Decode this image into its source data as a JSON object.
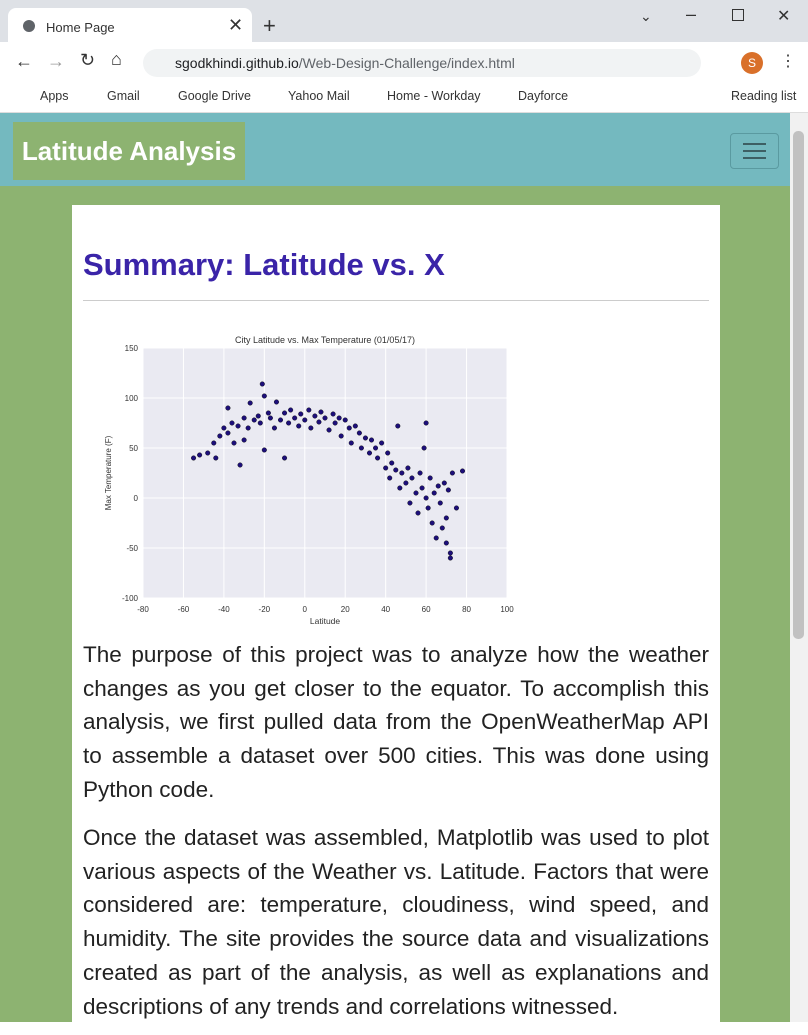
{
  "browser": {
    "tab_title": "Home Page",
    "url_domain": "sgodkhindi.github.io",
    "url_path": "/Web-Design-Challenge/index.html",
    "profile_initial": "S",
    "bookmarks": [
      "Apps",
      "Gmail",
      "Google Drive",
      "Yahoo Mail",
      "Home - Workday",
      "Dayforce"
    ],
    "reading_list": "Reading list"
  },
  "navbar": {
    "brand": "Latitude Analysis"
  },
  "content": {
    "heading": "Summary: Latitude vs. X",
    "paragraphs": [
      "The purpose of this project was to analyze how the weather changes as you get closer to the equator. To accomplish this analysis, we first pulled data from the OpenWeatherMap API to assemble a dataset over 500 cities. This was done using Python code.",
      "Once the dataset was assembled, Matplotlib was used to plot various aspects of the Weather vs. Latitude. Factors that were considered are: temperature, cloudiness, wind speed, and humidity. The site provides the source data and visualizations created as part of the analysis, as well as explanations and descriptions of any trends and correlations witnessed."
    ]
  },
  "chart_data": {
    "type": "scatter",
    "title": "City Latitude vs. Max Temperature (01/05/17)",
    "x_label": "Latitude",
    "y_label": "Max Temperature (F)",
    "xlim": [
      -80,
      100
    ],
    "ylim": [
      -100,
      150
    ],
    "xticks": [
      -80,
      -60,
      -40,
      -20,
      0,
      20,
      40,
      60,
      80,
      100
    ],
    "yticks": [
      -100,
      -50,
      0,
      50,
      100,
      150
    ],
    "grid": true,
    "color": "#1d0f7a",
    "x": [
      -55,
      -52,
      -48,
      -45,
      -44,
      -42,
      -40,
      -38,
      -36,
      -35,
      -33,
      -32,
      -30,
      -28,
      -27,
      -25,
      -23,
      -22,
      -21,
      -20,
      -18,
      -17,
      -15,
      -14,
      -12,
      -10,
      -8,
      -7,
      -5,
      -3,
      -2,
      0,
      2,
      3,
      5,
      7,
      8,
      10,
      12,
      14,
      15,
      17,
      18,
      20,
      22,
      23,
      25,
      27,
      28,
      30,
      32,
      33,
      35,
      36,
      38,
      40,
      41,
      42,
      43,
      45,
      46,
      47,
      48,
      50,
      51,
      52,
      53,
      55,
      56,
      57,
      58,
      59,
      60,
      61,
      62,
      63,
      64,
      65,
      66,
      67,
      68,
      69,
      70,
      70,
      71,
      72,
      72,
      73,
      75,
      78,
      -38,
      -30,
      -20,
      -10,
      60
    ],
    "values": [
      40,
      43,
      45,
      55,
      40,
      62,
      70,
      65,
      75,
      55,
      72,
      33,
      80,
      70,
      95,
      78,
      82,
      75,
      114,
      102,
      85,
      80,
      70,
      96,
      78,
      85,
      75,
      88,
      80,
      72,
      84,
      78,
      88,
      70,
      82,
      76,
      86,
      80,
      68,
      84,
      75,
      80,
      62,
      78,
      70,
      55,
      72,
      65,
      50,
      60,
      45,
      58,
      50,
      40,
      55,
      30,
      45,
      20,
      35,
      28,
      72,
      10,
      25,
      15,
      30,
      -5,
      20,
      5,
      -15,
      25,
      10,
      50,
      0,
      -10,
      20,
      -25,
      5,
      -40,
      12,
      -5,
      -30,
      15,
      -45,
      -20,
      8,
      -55,
      -60,
      25,
      -10,
      27,
      90,
      58,
      48,
      40,
      75
    ]
  }
}
